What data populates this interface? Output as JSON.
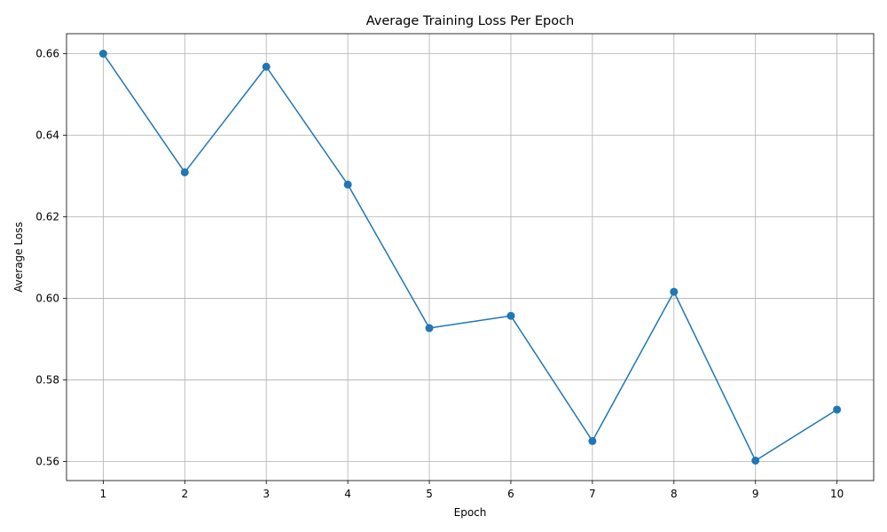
{
  "chart_data": {
    "type": "line",
    "title": "Average Training Loss Per Epoch",
    "xlabel": "Epoch",
    "ylabel": "Average Loss",
    "x": [
      1,
      2,
      3,
      4,
      5,
      6,
      7,
      8,
      9,
      10
    ],
    "series": [
      {
        "values": [
          0.66,
          0.6309,
          0.6568,
          0.6279,
          0.5927,
          0.5957,
          0.565,
          0.6016,
          0.5602,
          0.5727
        ]
      }
    ],
    "xlim": [
      0.55,
      10.45
    ],
    "ylim": [
      0.5553,
      0.6649
    ],
    "xticks": [
      1,
      2,
      3,
      4,
      5,
      6,
      7,
      8,
      9,
      10
    ],
    "yticks": [
      0.56,
      0.58,
      0.6,
      0.62,
      0.64,
      0.66
    ],
    "ytick_labels": [
      "0.56",
      "0.58",
      "0.60",
      "0.62",
      "0.64",
      "0.66"
    ],
    "grid": true,
    "line_color": "#1f77b4",
    "marker": "circle"
  }
}
